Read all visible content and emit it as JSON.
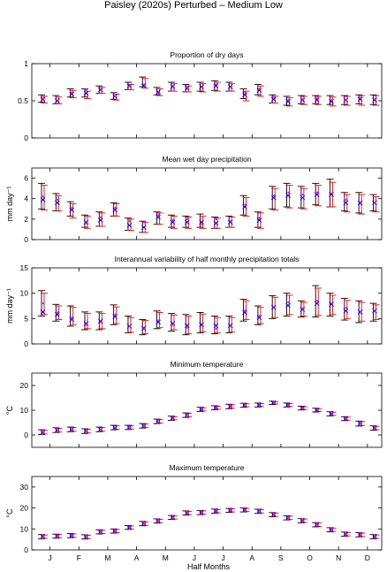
{
  "figure": {
    "title": "Paisley (2020s) Perturbed – Medium Low"
  },
  "x_axis": {
    "label": "Half Months",
    "ticks": [
      "J",
      "F",
      "M",
      "A",
      "M",
      "J",
      "J",
      "A",
      "S",
      "O",
      "N",
      "D"
    ]
  },
  "style": {
    "obs_color": "#000000",
    "model_color": "#ff0000",
    "median_color": "#0000ff",
    "marker_color": "#ff00ff"
  },
  "chart_data": [
    {
      "type": "errorbar",
      "title": "Proportion of dry days",
      "ylabel": "",
      "ylim": [
        0,
        1
      ],
      "yticks": [
        "0",
        "0.5",
        "1"
      ],
      "x": [
        1,
        2,
        3,
        4,
        5,
        6,
        7,
        8,
        9,
        10,
        11,
        12,
        13,
        14,
        15,
        16,
        17,
        18,
        19,
        20,
        21,
        22,
        23,
        24
      ],
      "series": [
        {
          "role": "observed",
          "low": [
            0.48,
            0.46,
            0.55,
            0.55,
            0.6,
            0.52,
            0.65,
            0.69,
            0.58,
            0.63,
            0.62,
            0.63,
            0.64,
            0.63,
            0.53,
            0.58,
            0.47,
            0.44,
            0.46,
            0.46,
            0.45,
            0.45,
            0.46,
            0.45
          ],
          "high": [
            0.58,
            0.57,
            0.66,
            0.66,
            0.7,
            0.61,
            0.75,
            0.82,
            0.68,
            0.75,
            0.72,
            0.75,
            0.77,
            0.75,
            0.66,
            0.72,
            0.58,
            0.56,
            0.57,
            0.57,
            0.57,
            0.57,
            0.58,
            0.58
          ]
        },
        {
          "role": "modelled",
          "low": [
            0.47,
            0.46,
            0.54,
            0.53,
            0.6,
            0.51,
            0.65,
            0.67,
            0.57,
            0.63,
            0.62,
            0.62,
            0.63,
            0.63,
            0.5,
            0.56,
            0.47,
            0.43,
            0.45,
            0.45,
            0.43,
            0.44,
            0.44,
            0.44
          ],
          "high": [
            0.56,
            0.55,
            0.64,
            0.63,
            0.68,
            0.59,
            0.72,
            0.8,
            0.66,
            0.73,
            0.7,
            0.73,
            0.75,
            0.73,
            0.63,
            0.7,
            0.56,
            0.54,
            0.56,
            0.56,
            0.55,
            0.56,
            0.57,
            0.57
          ]
        },
        {
          "role": "median",
          "values": [
            0.52,
            0.5,
            0.59,
            0.6,
            0.65,
            0.56,
            0.7,
            0.7,
            0.62,
            0.69,
            0.67,
            0.69,
            0.7,
            0.69,
            0.58,
            0.64,
            0.52,
            0.49,
            0.51,
            0.51,
            0.49,
            0.51,
            0.52,
            0.51
          ]
        },
        {
          "role": "sample",
          "values": [
            0.53,
            0.5,
            0.61,
            0.65,
            0.64,
            0.56,
            0.71,
            0.72,
            0.6,
            0.7,
            0.66,
            0.68,
            0.72,
            0.68,
            0.61,
            0.66,
            0.55,
            0.51,
            0.52,
            0.53,
            0.51,
            0.51,
            0.54,
            0.52
          ]
        }
      ]
    },
    {
      "type": "errorbar",
      "title": "Mean wet day precipitation",
      "ylabel": "mm day⁻¹",
      "ylim": [
        0,
        7
      ],
      "yticks": [
        "0",
        "2",
        "4",
        "6"
      ],
      "x": [
        1,
        2,
        3,
        4,
        5,
        6,
        7,
        8,
        9,
        10,
        11,
        12,
        13,
        14,
        15,
        16,
        17,
        18,
        19,
        20,
        21,
        22,
        23,
        24
      ],
      "series": [
        {
          "role": "observed",
          "low": [
            3.0,
            2.8,
            2.3,
            1.2,
            1.3,
            2.3,
            0.9,
            0.7,
            1.5,
            1.2,
            1.2,
            1.2,
            1.1,
            1.2,
            2.4,
            1.2,
            3.0,
            3.2,
            3.1,
            3.4,
            3.2,
            2.8,
            2.6,
            2.8
          ],
          "high": [
            5.5,
            4.5,
            3.7,
            2.4,
            2.7,
            3.6,
            2.1,
            1.8,
            2.7,
            2.4,
            2.3,
            2.5,
            2.2,
            2.3,
            4.3,
            2.7,
            5.2,
            5.5,
            5.2,
            5.5,
            5.9,
            4.6,
            4.6,
            4.4
          ]
        },
        {
          "role": "modelled",
          "low": [
            2.9,
            2.8,
            2.1,
            1.1,
            1.3,
            2.3,
            0.9,
            0.7,
            1.5,
            1.1,
            1.1,
            1.1,
            1.1,
            1.2,
            2.3,
            1.1,
            2.9,
            3.1,
            3.0,
            3.3,
            3.2,
            2.7,
            2.5,
            2.7
          ],
          "high": [
            5.3,
            4.3,
            3.5,
            2.3,
            2.6,
            3.5,
            2.0,
            1.7,
            2.6,
            2.3,
            2.2,
            2.3,
            2.1,
            2.2,
            4.1,
            2.6,
            5.0,
            5.3,
            5.0,
            5.3,
            5.6,
            4.4,
            4.4,
            4.2
          ]
        },
        {
          "role": "median",
          "values": [
            3.9,
            3.6,
            2.9,
            1.7,
            1.9,
            2.9,
            1.4,
            1.2,
            2.2,
            1.7,
            1.7,
            1.7,
            1.6,
            1.7,
            3.2,
            1.9,
            4.1,
            4.3,
            4.1,
            4.4,
            4.4,
            3.6,
            3.6,
            3.6
          ]
        },
        {
          "role": "sample",
          "values": [
            4.2,
            3.9,
            3.1,
            1.6,
            2.2,
            3.1,
            1.8,
            1.7,
            2.4,
            1.9,
            2.0,
            1.5,
            2.0,
            1.8,
            3.4,
            2.1,
            4.3,
            4.6,
            4.4,
            4.6,
            4.5,
            3.9,
            3.5,
            3.6
          ]
        }
      ]
    },
    {
      "type": "errorbar",
      "title": "Interannual variability of half monthly precipitation totals",
      "ylabel": "mm day⁻¹",
      "ylim": [
        0,
        15
      ],
      "yticks": [
        "0",
        "5",
        "10",
        "15"
      ],
      "x": [
        1,
        2,
        3,
        4,
        5,
        6,
        7,
        8,
        9,
        10,
        11,
        12,
        13,
        14,
        15,
        16,
        17,
        18,
        19,
        20,
        21,
        22,
        23,
        24
      ],
      "series": [
        {
          "role": "observed",
          "low": [
            5.5,
            4.5,
            3.5,
            2.8,
            2.8,
            3.8,
            2.2,
            1.8,
            3.0,
            2.5,
            1.8,
            2.2,
            2.0,
            2.2,
            4.5,
            3.8,
            5.0,
            5.5,
            5.3,
            5.3,
            5.5,
            4.7,
            4.2,
            4.5
          ],
          "high": [
            10.5,
            7.8,
            7.5,
            6.3,
            6.3,
            7.7,
            5.5,
            4.8,
            6.5,
            6.0,
            5.8,
            6.2,
            5.5,
            5.5,
            8.8,
            7.5,
            9.5,
            10.0,
            8.5,
            11.5,
            10.0,
            9.0,
            8.5,
            8.0
          ]
        },
        {
          "role": "modelled",
          "low": [
            5.8,
            4.8,
            3.8,
            3.0,
            3.0,
            4.0,
            2.3,
            2.0,
            3.2,
            2.8,
            2.0,
            2.4,
            2.2,
            2.4,
            4.8,
            4.0,
            5.2,
            5.8,
            5.5,
            5.6,
            5.8,
            5.0,
            4.5,
            4.8
          ],
          "high": [
            10.0,
            7.5,
            7.2,
            6.0,
            6.0,
            7.3,
            5.2,
            4.6,
            6.2,
            5.7,
            5.5,
            5.9,
            5.2,
            5.2,
            8.5,
            7.2,
            9.2,
            9.6,
            8.2,
            11.0,
            9.6,
            8.6,
            8.2,
            7.7
          ]
        },
        {
          "role": "median",
          "values": [
            6.3,
            5.8,
            4.8,
            4.0,
            4.5,
            5.4,
            3.5,
            3.1,
            4.3,
            4.0,
            3.6,
            3.8,
            3.6,
            3.6,
            6.2,
            5.2,
            7.2,
            7.6,
            6.8,
            8.0,
            7.8,
            6.5,
            6.3,
            6.5
          ]
        },
        {
          "role": "sample",
          "values": [
            8.0,
            6.2,
            5.2,
            3.8,
            4.3,
            5.8,
            3.5,
            2.9,
            4.6,
            3.8,
            3.2,
            3.6,
            3.0,
            3.5,
            6.6,
            5.5,
            7.3,
            8.2,
            7.0,
            8.5,
            8.0,
            7.1,
            6.2,
            6.4
          ]
        }
      ]
    },
    {
      "type": "errorbar",
      "title": "Minimum temperature",
      "ylabel": "°C",
      "ylim": [
        -5,
        25
      ],
      "yticks": [
        "0",
        "10",
        "20"
      ],
      "x": [
        1,
        2,
        3,
        4,
        5,
        6,
        7,
        8,
        9,
        10,
        11,
        12,
        13,
        14,
        15,
        16,
        17,
        18,
        19,
        20,
        21,
        22,
        23,
        24
      ],
      "series": [
        {
          "role": "observed",
          "low": [
            0.2,
            1.0,
            1.3,
            0.6,
            1.3,
            2.1,
            2.2,
            2.8,
            4.6,
            5.9,
            7.1,
            9.5,
            10.2,
            10.6,
            11.2,
            11.3,
            12.3,
            11.3,
            10.1,
            9.3,
            7.7,
            5.8,
            3.6,
            1.9
          ],
          "high": [
            2.1,
            2.9,
            3.2,
            2.5,
            3.2,
            3.9,
            3.9,
            4.6,
            6.4,
            7.6,
            8.9,
            11.2,
            11.8,
            12.4,
            12.8,
            12.9,
            13.6,
            12.9,
            11.6,
            10.8,
            9.4,
            7.4,
            5.6,
            3.7
          ]
        },
        {
          "role": "modelled",
          "low": [
            0.4,
            1.2,
            1.5,
            0.8,
            1.5,
            2.3,
            2.4,
            3.0,
            4.8,
            6.1,
            7.3,
            9.7,
            10.4,
            10.8,
            11.4,
            11.5,
            12.5,
            11.5,
            10.3,
            9.5,
            7.9,
            6.0,
            3.8,
            2.1
          ],
          "high": [
            1.9,
            2.7,
            3.0,
            2.3,
            3.0,
            3.7,
            3.7,
            4.4,
            6.2,
            7.4,
            8.7,
            11.0,
            11.6,
            12.2,
            12.6,
            12.7,
            13.4,
            12.7,
            11.4,
            10.6,
            9.2,
            7.2,
            5.4,
            3.5
          ]
        },
        {
          "role": "median",
          "values": [
            1.1,
            1.9,
            2.2,
            1.6,
            2.2,
            2.9,
            3.1,
            3.7,
            5.5,
            6.8,
            8.0,
            10.3,
            11.0,
            11.5,
            12.0,
            12.1,
            13.0,
            12.1,
            10.9,
            10.0,
            8.5,
            6.6,
            4.6,
            2.8
          ]
        },
        {
          "role": "sample",
          "values": [
            1.2,
            2.0,
            2.3,
            1.5,
            2.3,
            3.0,
            3.0,
            3.8,
            5.5,
            6.9,
            8.1,
            10.4,
            11.1,
            11.5,
            12.1,
            12.0,
            13.0,
            12.0,
            10.8,
            10.1,
            8.6,
            6.5,
            4.5,
            2.9
          ]
        }
      ]
    },
    {
      "type": "errorbar",
      "title": "Maximum temperature",
      "ylabel": "°C",
      "ylim": [
        0,
        35
      ],
      "yticks": [
        "0",
        "10",
        "20",
        "30"
      ],
      "x": [
        1,
        2,
        3,
        4,
        5,
        6,
        7,
        8,
        9,
        10,
        11,
        12,
        13,
        14,
        15,
        16,
        17,
        18,
        19,
        20,
        21,
        22,
        23,
        24
      ],
      "series": [
        {
          "role": "observed",
          "low": [
            5.3,
            5.6,
            5.8,
            5.2,
            7.6,
            8.0,
            9.8,
            11.5,
            12.8,
            14.5,
            16.6,
            16.8,
            17.5,
            17.9,
            18.1,
            17.4,
            15.8,
            14.3,
            12.9,
            11.0,
            8.6,
            6.5,
            6.2,
            5.3
          ],
          "high": [
            7.3,
            7.5,
            7.8,
            7.2,
            9.6,
            10.0,
            11.6,
            13.6,
            14.8,
            16.4,
            18.6,
            18.8,
            19.5,
            19.8,
            20.0,
            19.4,
            17.8,
            16.3,
            14.9,
            13.0,
            10.6,
            8.5,
            8.2,
            7.3
          ]
        },
        {
          "role": "modelled",
          "low": [
            5.5,
            5.8,
            6.0,
            5.4,
            7.8,
            8.2,
            10.0,
            11.7,
            13.0,
            14.7,
            16.8,
            17.0,
            17.7,
            18.1,
            18.3,
            17.6,
            16.0,
            14.5,
            13.1,
            11.2,
            8.8,
            6.7,
            6.4,
            5.5
          ],
          "high": [
            7.1,
            7.3,
            7.6,
            7.0,
            9.4,
            9.8,
            11.4,
            13.4,
            14.6,
            16.2,
            18.4,
            18.6,
            19.3,
            19.6,
            19.8,
            19.2,
            17.6,
            16.1,
            14.7,
            12.8,
            10.4,
            8.3,
            8.0,
            7.1
          ]
        },
        {
          "role": "median",
          "values": [
            6.3,
            6.6,
            6.8,
            6.2,
            8.6,
            9.0,
            10.7,
            12.5,
            13.8,
            15.5,
            17.6,
            17.8,
            18.5,
            18.8,
            19.0,
            18.4,
            16.8,
            15.3,
            13.9,
            12.0,
            9.6,
            7.5,
            7.2,
            6.3
          ]
        },
        {
          "role": "sample",
          "values": [
            6.4,
            6.5,
            6.9,
            6.1,
            8.7,
            9.0,
            10.8,
            12.6,
            13.7,
            15.4,
            17.7,
            17.9,
            18.4,
            18.9,
            19.1,
            18.3,
            16.9,
            15.2,
            14.0,
            11.9,
            9.7,
            7.4,
            7.3,
            6.2
          ]
        }
      ]
    }
  ]
}
